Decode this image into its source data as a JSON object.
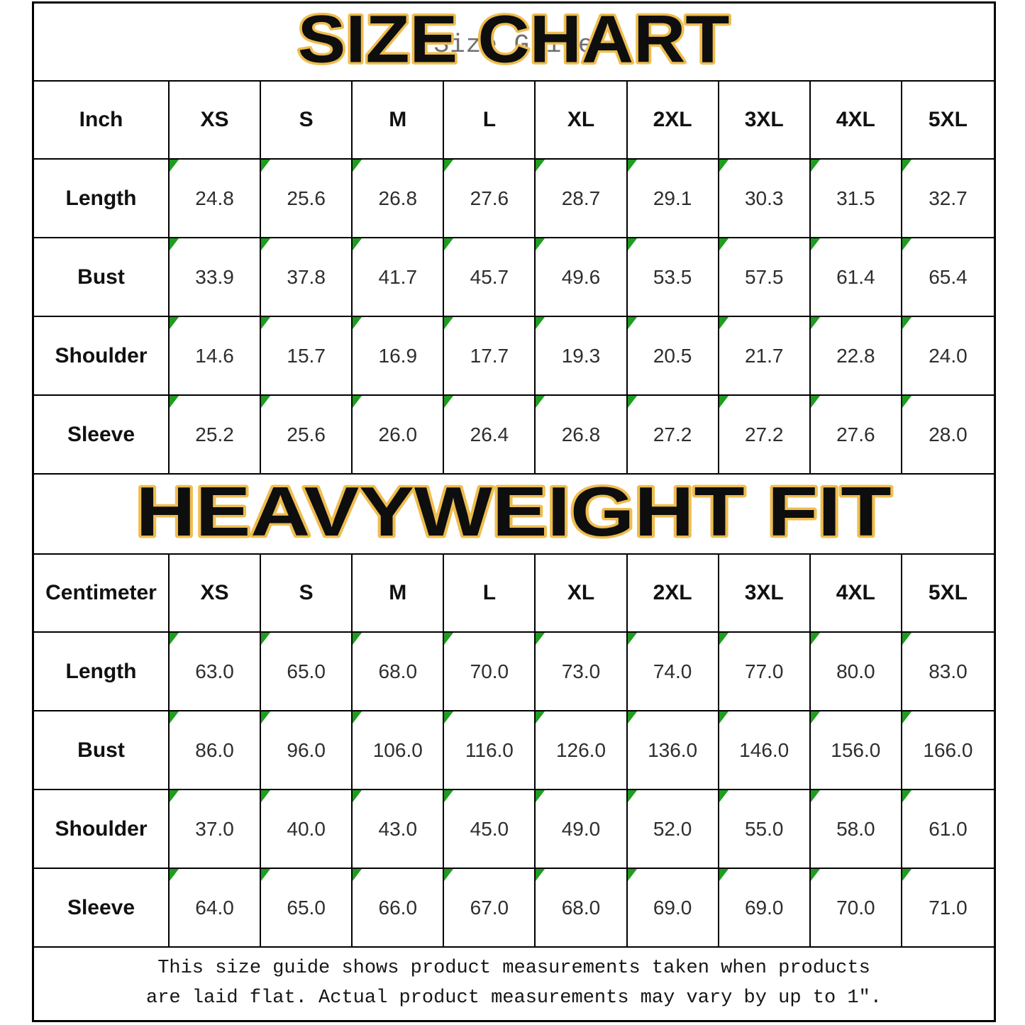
{
  "page": {
    "title_overlay": "SIZE CHART",
    "title_underlay": "Size Guide",
    "band_title": "HEAVYWEIGHT FIT",
    "note_line1": "This size guide shows product measurements taken when products",
    "note_line2": "are laid flat. Actual product measurements may vary by up to 1″.",
    "colors": {
      "title_outline_gold": "#eebd4f",
      "cell_flag_green": "#1f9d20",
      "table_border_black": "#000000"
    }
  },
  "sizes": [
    "XS",
    "S",
    "M",
    "L",
    "XL",
    "2XL",
    "3XL",
    "4XL",
    "5XL"
  ],
  "tables": [
    {
      "unit": "Inch",
      "rows": [
        {
          "label": "Length",
          "values": [
            "24.8",
            "25.6",
            "26.8",
            "27.6",
            "28.7",
            "29.1",
            "30.3",
            "31.5",
            "32.7"
          ]
        },
        {
          "label": "Bust",
          "values": [
            "33.9",
            "37.8",
            "41.7",
            "45.7",
            "49.6",
            "53.5",
            "57.5",
            "61.4",
            "65.4"
          ]
        },
        {
          "label": "Shoulder",
          "values": [
            "14.6",
            "15.7",
            "16.9",
            "17.7",
            "19.3",
            "20.5",
            "21.7",
            "22.8",
            "24.0"
          ]
        },
        {
          "label": "Sleeve",
          "values": [
            "25.2",
            "25.6",
            "26.0",
            "26.4",
            "26.8",
            "27.2",
            "27.2",
            "27.6",
            "28.0"
          ]
        }
      ]
    },
    {
      "unit": "Centimeter",
      "rows": [
        {
          "label": "Length",
          "values": [
            "63.0",
            "65.0",
            "68.0",
            "70.0",
            "73.0",
            "74.0",
            "77.0",
            "80.0",
            "83.0"
          ]
        },
        {
          "label": "Bust",
          "values": [
            "86.0",
            "96.0",
            "106.0",
            "116.0",
            "126.0",
            "136.0",
            "146.0",
            "156.0",
            "166.0"
          ]
        },
        {
          "label": "Shoulder",
          "values": [
            "37.0",
            "40.0",
            "43.0",
            "45.0",
            "49.0",
            "52.0",
            "55.0",
            "58.0",
            "61.0"
          ]
        },
        {
          "label": "Sleeve",
          "values": [
            "64.0",
            "65.0",
            "66.0",
            "67.0",
            "68.0",
            "69.0",
            "69.0",
            "70.0",
            "71.0"
          ]
        }
      ]
    }
  ]
}
